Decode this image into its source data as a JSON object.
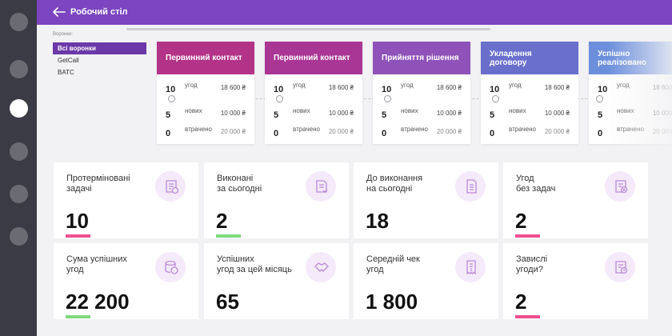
{
  "app": {
    "title": "Робочий стіл"
  },
  "funnels": {
    "label": "Воронки:",
    "items": [
      "Всі воронки",
      "GetCall",
      "BATC"
    ]
  },
  "stages": [
    {
      "title": "Первинний контакт",
      "color": "#b33388",
      "rows": [
        {
          "num": "10",
          "label": "угод",
          "amount": "18 600 ₴"
        },
        {
          "num": "5",
          "label": "нових",
          "amount": "10 000 ₴"
        },
        {
          "num": "0",
          "label": "втрачено",
          "amount": "20 000 ₴"
        }
      ]
    },
    {
      "title": "Первинний контакт",
      "color": "#a93695",
      "rows": [
        {
          "num": "10",
          "label": "угод",
          "amount": "18 600 ₴"
        },
        {
          "num": "5",
          "label": "нових",
          "amount": "10 000 ₴"
        },
        {
          "num": "0",
          "label": "втрачено",
          "amount": "20 000 ₴"
        }
      ]
    },
    {
      "title": "Прийняття рішення",
      "color": "#8e52b8",
      "rows": [
        {
          "num": "10",
          "label": "угод",
          "amount": "18 600 ₴"
        },
        {
          "num": "5",
          "label": "нових",
          "amount": "10 000 ₴"
        },
        {
          "num": "0",
          "label": "втрачено",
          "amount": "20 000 ₴"
        }
      ]
    },
    {
      "title": "Укладення договору",
      "color": "#6a6fcc",
      "rows": [
        {
          "num": "10",
          "label": "угод",
          "amount": "18 600 ₴"
        },
        {
          "num": "5",
          "label": "нових",
          "amount": "10 000 ₴"
        },
        {
          "num": "0",
          "label": "втрачено",
          "amount": "20 000 ₴"
        }
      ]
    },
    {
      "title": "Успішно реалізовано",
      "color": "#6c8fdc",
      "rows": [
        {
          "num": "10",
          "label": "угод",
          "amount": "18 600 ₴"
        },
        {
          "num": "5",
          "label": "нових",
          "amount": "10 000 ₴"
        },
        {
          "num": "0",
          "label": "втрачено",
          "amount": "20 000 ₴"
        }
      ]
    }
  ],
  "cards": [
    {
      "title": "Протерміновані\nзадачі",
      "value": "10",
      "bar_color": "#ef4f8e",
      "icon": "overdue-tasks-icon"
    },
    {
      "title": "Виконані\nза сьогодні",
      "value": "2",
      "bar_color": "#7fd97c",
      "icon": "completed-today-icon"
    },
    {
      "title": "До виконання\nна сьогодні",
      "value": "18",
      "bar_color": "",
      "icon": "todo-document-icon"
    },
    {
      "title": "Угод\nбез задач",
      "value": "2",
      "bar_color": "#ef4f8e",
      "icon": "deals-without-tasks-icon"
    },
    {
      "title": "Сума успішних\nугод",
      "value": "22 200",
      "bar_color": "#7fd97c",
      "icon": "coins-icon"
    },
    {
      "title": "Успішних\nугод за цей місяць",
      "value": "65",
      "bar_color": "",
      "icon": "handshake-icon"
    },
    {
      "title": "Середній чек\nугод",
      "value": "1 800",
      "bar_color": "",
      "icon": "receipt-icon"
    },
    {
      "title": "Завислі\nугоди?",
      "value": "2",
      "bar_color": "#ef4f8e",
      "icon": "stuck-deals-icon"
    }
  ]
}
